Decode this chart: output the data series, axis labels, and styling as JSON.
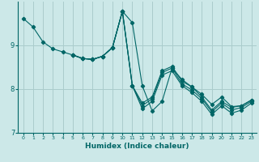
{
  "title": "",
  "xlabel": "Humidex (Indice chaleur)",
  "ylabel": "",
  "background_color": "#cce8e8",
  "grid_color": "#aacccc",
  "line_color": "#006666",
  "xlim": [
    -0.5,
    23.5
  ],
  "ylim": [
    7.0,
    10.0
  ],
  "yticks": [
    7,
    8,
    9
  ],
  "xticks": [
    0,
    1,
    2,
    3,
    4,
    5,
    6,
    7,
    8,
    9,
    10,
    11,
    12,
    13,
    14,
    15,
    16,
    17,
    18,
    19,
    20,
    21,
    22,
    23
  ],
  "series": [
    {
      "x": [
        0,
        1,
        2,
        3,
        4,
        5,
        6,
        7,
        8,
        9,
        10,
        11,
        12,
        13,
        14,
        15,
        16,
        17,
        18,
        19,
        20,
        21,
        22,
        23
      ],
      "y": [
        9.62,
        9.42,
        9.08,
        8.92,
        8.85,
        8.78,
        8.7,
        8.68,
        8.75,
        8.95,
        9.78,
        9.52,
        8.08,
        7.5,
        7.72,
        8.48,
        8.22,
        8.05,
        7.88,
        7.65,
        7.82,
        7.6,
        7.62,
        7.75
      ]
    },
    {
      "x": [
        5,
        6,
        7,
        8,
        9,
        10,
        11,
        12,
        13,
        14,
        15,
        16,
        17,
        18,
        19,
        20,
        21,
        22,
        23
      ],
      "y": [
        8.78,
        8.7,
        8.68,
        8.75,
        8.95,
        9.78,
        8.08,
        7.68,
        7.82,
        8.42,
        8.52,
        8.18,
        8.05,
        7.82,
        7.52,
        7.72,
        7.58,
        7.62,
        7.75
      ]
    },
    {
      "x": [
        5,
        6,
        7,
        8,
        9,
        10,
        11,
        12,
        13,
        14,
        15,
        16,
        17,
        18,
        19,
        20,
        21,
        22,
        23
      ],
      "y": [
        8.78,
        8.7,
        8.68,
        8.75,
        8.95,
        9.78,
        8.08,
        7.62,
        7.78,
        8.38,
        8.48,
        8.12,
        7.98,
        7.78,
        7.48,
        7.68,
        7.52,
        7.58,
        7.72
      ]
    },
    {
      "x": [
        5,
        6,
        7,
        8,
        9,
        10,
        11,
        12,
        13,
        14,
        15,
        16,
        17,
        18,
        19,
        20,
        21,
        22,
        23
      ],
      "y": [
        8.78,
        8.7,
        8.68,
        8.75,
        8.95,
        9.78,
        8.08,
        7.55,
        7.72,
        8.32,
        8.42,
        8.08,
        7.92,
        7.72,
        7.42,
        7.62,
        7.45,
        7.52,
        7.68
      ]
    }
  ]
}
